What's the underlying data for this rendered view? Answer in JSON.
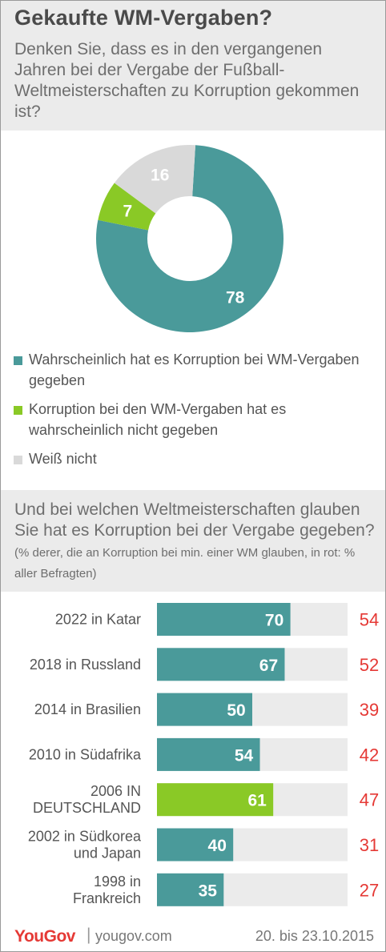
{
  "header": {
    "title": "Gekaufte WM-Vergaben?",
    "question": "Denken Sie, dass es in den vergangenen Jahren bei der Vergabe der Fußball-Weltmeisterschaften zu Korruption gekommen ist?"
  },
  "colors": {
    "teal": "#4a9a9a",
    "green": "#8ac926",
    "light_gray": "#d9d9d9",
    "track": "#ebebeb",
    "red": "#e53935"
  },
  "legend": [
    {
      "label": "Wahrscheinlich hat es Korruption bei WM-Vergaben gegeben",
      "color": "#4a9a9a"
    },
    {
      "label": "Korruption bei den WM-Vergaben hat es wahrscheinlich nicht gegeben",
      "color": "#8ac926"
    },
    {
      "label": "Weiß nicht",
      "color": "#d9d9d9"
    }
  ],
  "question2": {
    "main": "Und bei welchen Weltmeisterschaften glauben Sie hat es Korruption bei der Vergabe gegeben?",
    "note": "(% derer, die an Korruption bei min. einer WM glauben, in rot: % aller Befragten)"
  },
  "chart_data": [
    {
      "type": "pie",
      "categories": [
        "Wahrscheinlich hat es Korruption bei WM-Vergaben gegeben",
        "Korruption bei den WM-Vergaben hat es wahrscheinlich nicht gegeben",
        "Weiß nicht"
      ],
      "values": [
        78,
        7,
        16
      ],
      "labels": [
        "78",
        "7",
        "16"
      ],
      "donut": true
    },
    {
      "type": "bar",
      "orientation": "horizontal",
      "categories": [
        [
          "2022 in Katar"
        ],
        [
          "2018 in Russland"
        ],
        [
          "2014 in Brasilien"
        ],
        [
          "2010 in Südafrika"
        ],
        [
          "2006 IN",
          "DEUTSCHLAND"
        ],
        [
          "2002 in Südkorea",
          "und Japan"
        ],
        [
          "1998 in",
          "Frankreich"
        ]
      ],
      "series": [
        {
          "values": [
            70,
            67,
            50,
            54,
            61,
            40,
            35
          ]
        },
        {
          "values": [
            54,
            52,
            39,
            42,
            47,
            31,
            27
          ]
        }
      ],
      "highlight_index": 4,
      "xlim": [
        0,
        100
      ]
    }
  ],
  "footer": {
    "logo": "YouGov",
    "separator": "|",
    "site": "yougov.com",
    "date": "20. bis 23.10.2015"
  }
}
